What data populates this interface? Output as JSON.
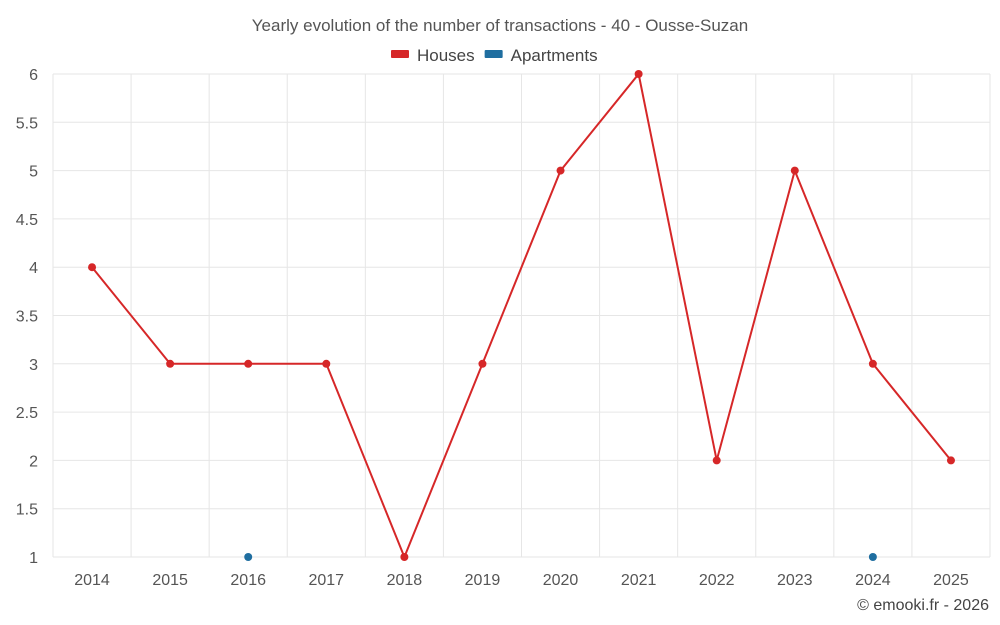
{
  "chart_data": {
    "type": "line",
    "title": "Yearly evolution of the number of transactions - 40 - Ousse-Suzan",
    "categories": [
      "2014",
      "2015",
      "2016",
      "2017",
      "2018",
      "2019",
      "2020",
      "2021",
      "2022",
      "2023",
      "2024",
      "2025"
    ],
    "yticks": [
      "1",
      "1.5",
      "2",
      "2.5",
      "3",
      "3.5",
      "4",
      "4.5",
      "5",
      "5.5",
      "6"
    ],
    "ylim": [
      1,
      6
    ],
    "grid": true,
    "legend_position": "top-center",
    "series": [
      {
        "name": "Houses",
        "color": "#d62728",
        "values": [
          4,
          3,
          3,
          3,
          1,
          3,
          5,
          6,
          2,
          5,
          3,
          2
        ]
      },
      {
        "name": "Apartments",
        "color": "#1f6ea0",
        "values": [
          null,
          null,
          1,
          null,
          null,
          null,
          null,
          null,
          null,
          null,
          1,
          null
        ]
      }
    ]
  },
  "credit": "© emooki.fr - 2026"
}
